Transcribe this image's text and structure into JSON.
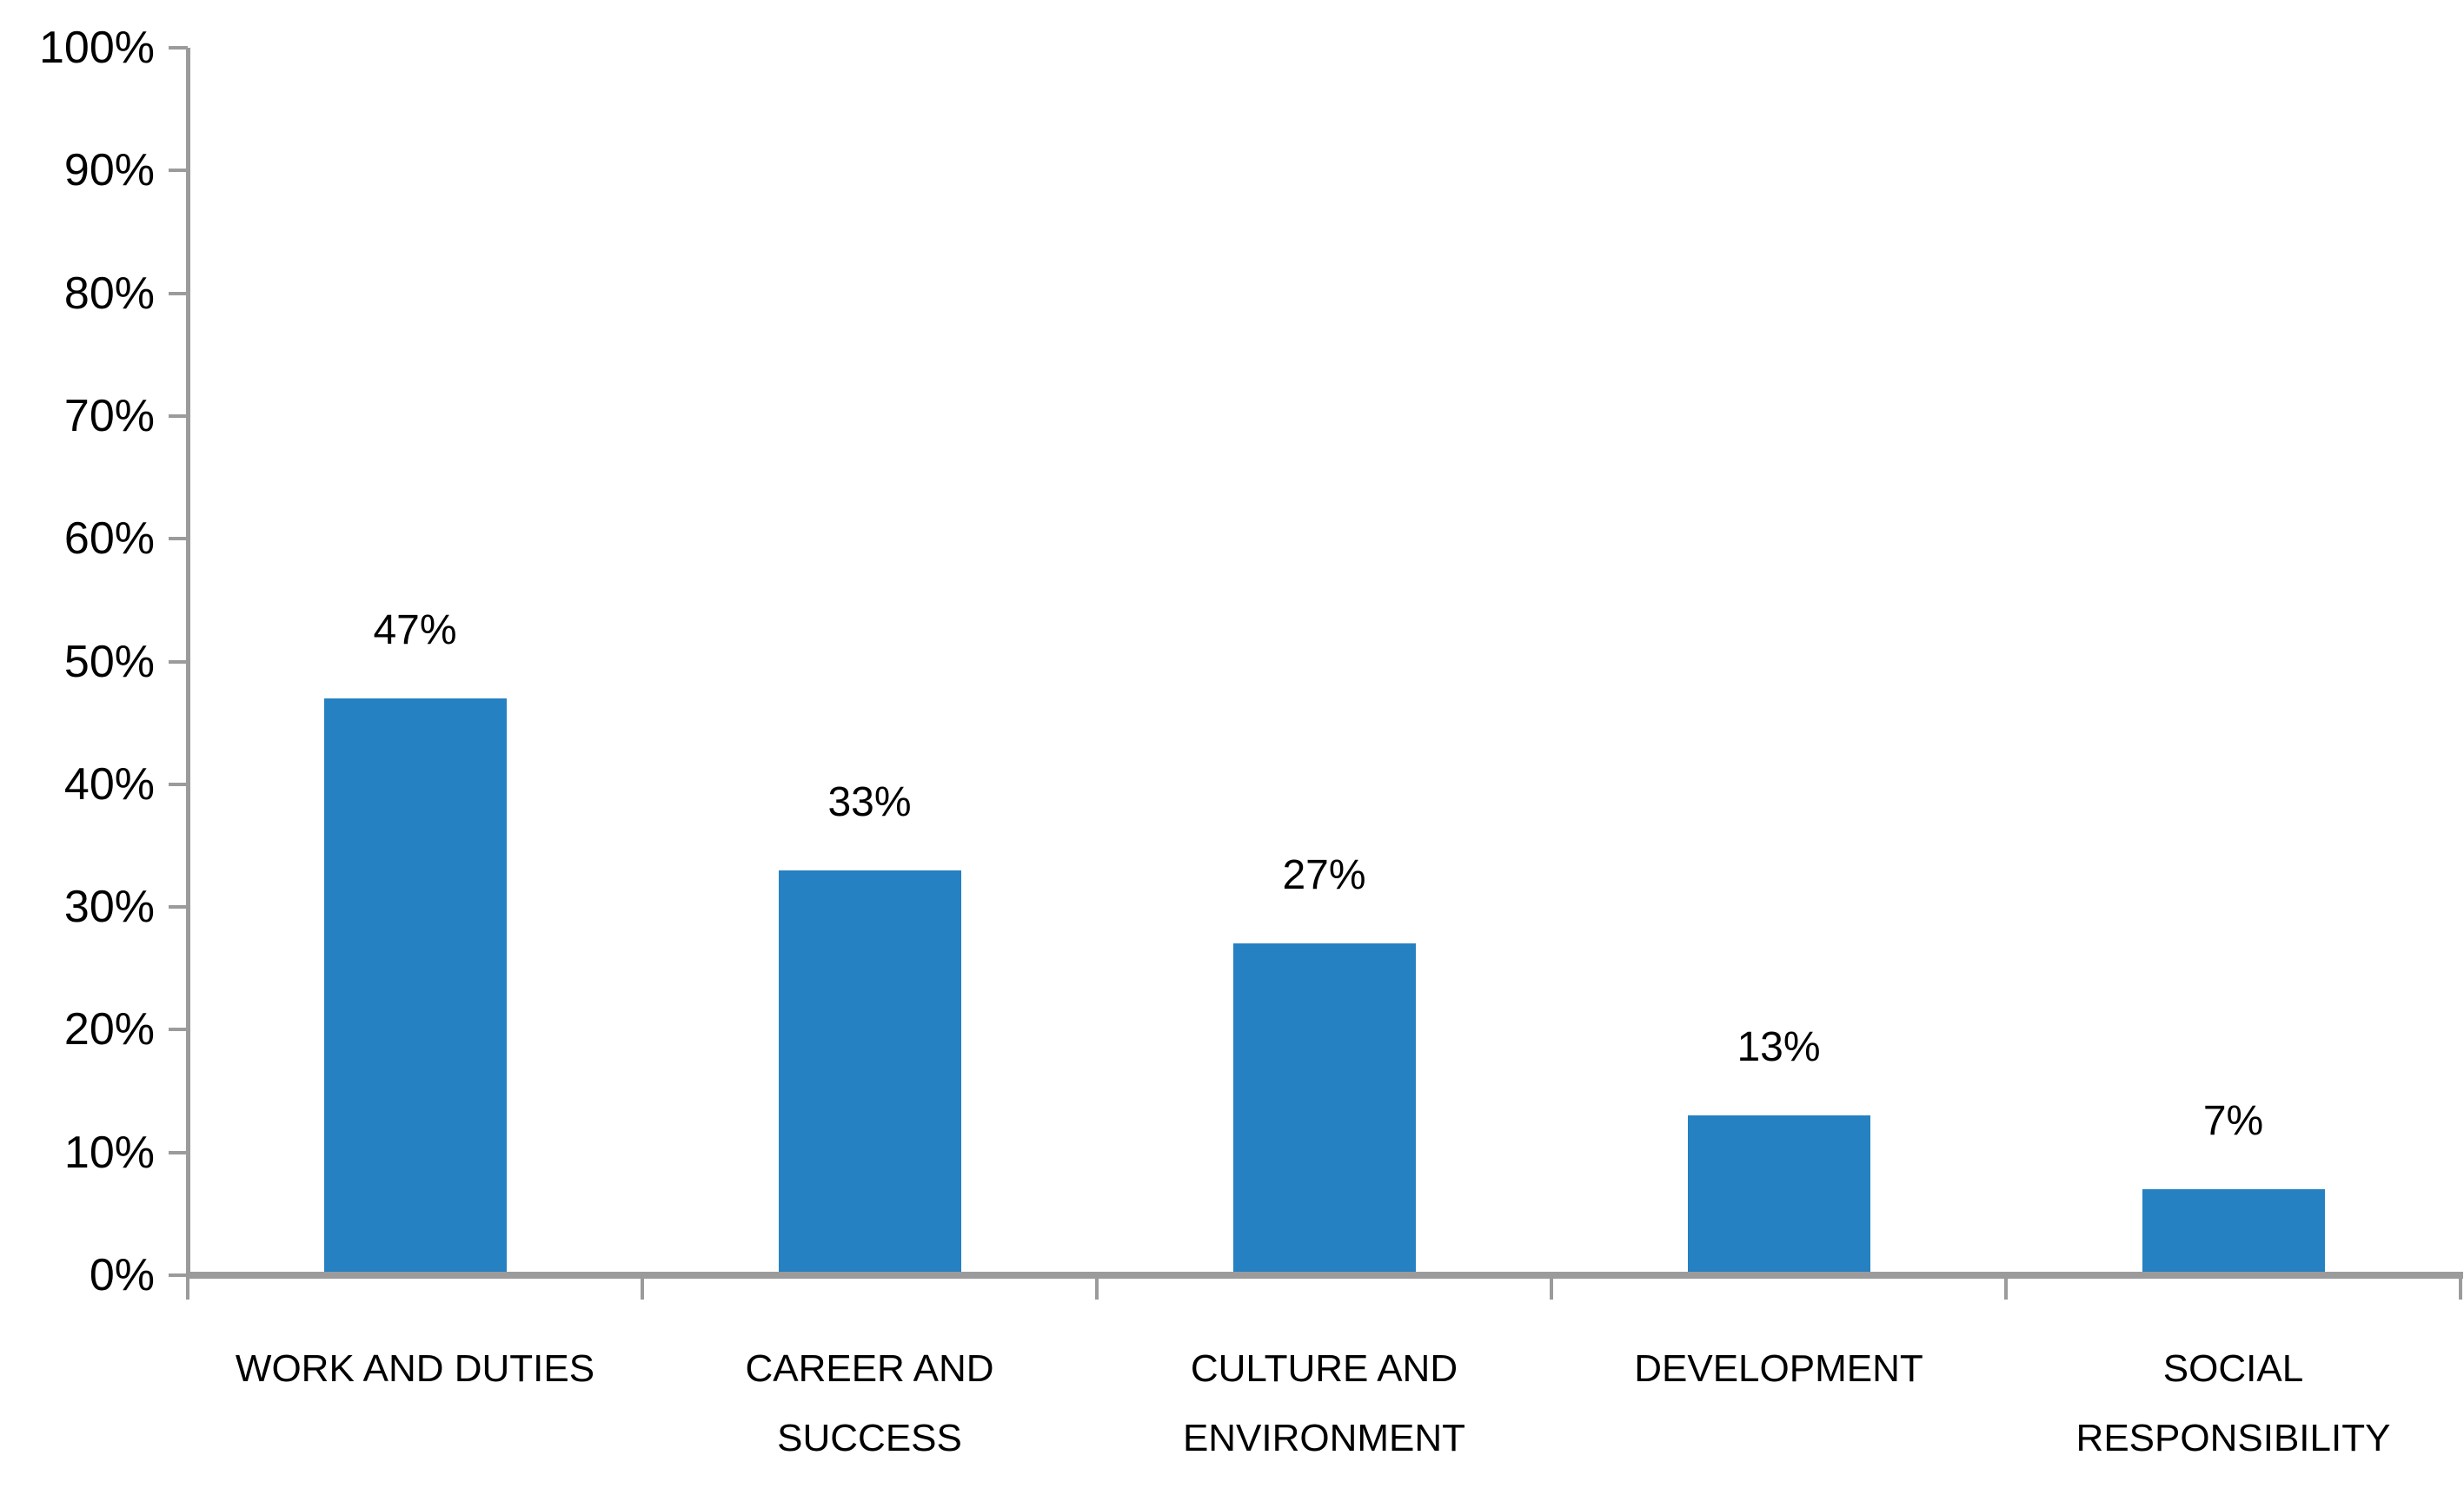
{
  "chart_data": {
    "type": "bar",
    "title": "",
    "xlabel": "",
    "ylabel": "",
    "categories": [
      "WORK AND DUTIES",
      "CAREER AND SUCCESS",
      "CULTURE AND ENVIRONMENT",
      "DEVELOPMENT",
      "SOCIAL RESPONSIBILITY"
    ],
    "values": [
      47,
      33,
      27,
      13,
      7
    ],
    "value_labels": [
      "47%",
      "33%",
      "27%",
      "13%",
      "7%"
    ],
    "ylim": [
      0,
      100
    ],
    "ytick_step": 10,
    "ytick_labels": [
      "0%",
      "10%",
      "20%",
      "30%",
      "40%",
      "50%",
      "60%",
      "70%",
      "80%",
      "90%",
      "100%"
    ],
    "grid": false,
    "legend": "none",
    "bar_color": "#2581c1",
    "axis_color": "#9b9b9b",
    "text_color": "#000000",
    "background_color": "#ffffff"
  }
}
